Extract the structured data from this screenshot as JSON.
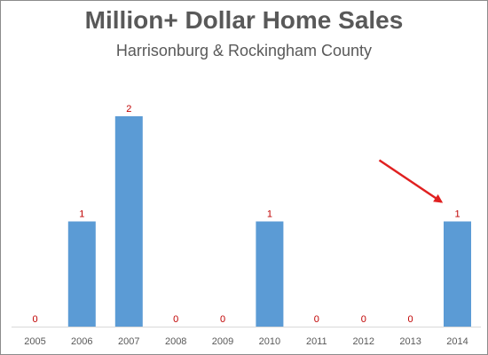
{
  "chart_data": {
    "type": "bar",
    "title": "Million+ Dollar Home Sales",
    "subtitle": "Harrisonburg & Rockingham County",
    "categories": [
      "2005",
      "2006",
      "2007",
      "2008",
      "2009",
      "2010",
      "2011",
      "2012",
      "2013",
      "2014"
    ],
    "values": [
      0,
      1,
      2,
      0,
      0,
      1,
      0,
      0,
      0,
      1
    ],
    "ylim": [
      0,
      2
    ],
    "grid": false,
    "legend": "none",
    "bar_color": "#5b9bd5",
    "data_label_color": "#c00000",
    "annotation": {
      "type": "arrow",
      "points_to_category": "2014",
      "color": "#e02020"
    }
  }
}
